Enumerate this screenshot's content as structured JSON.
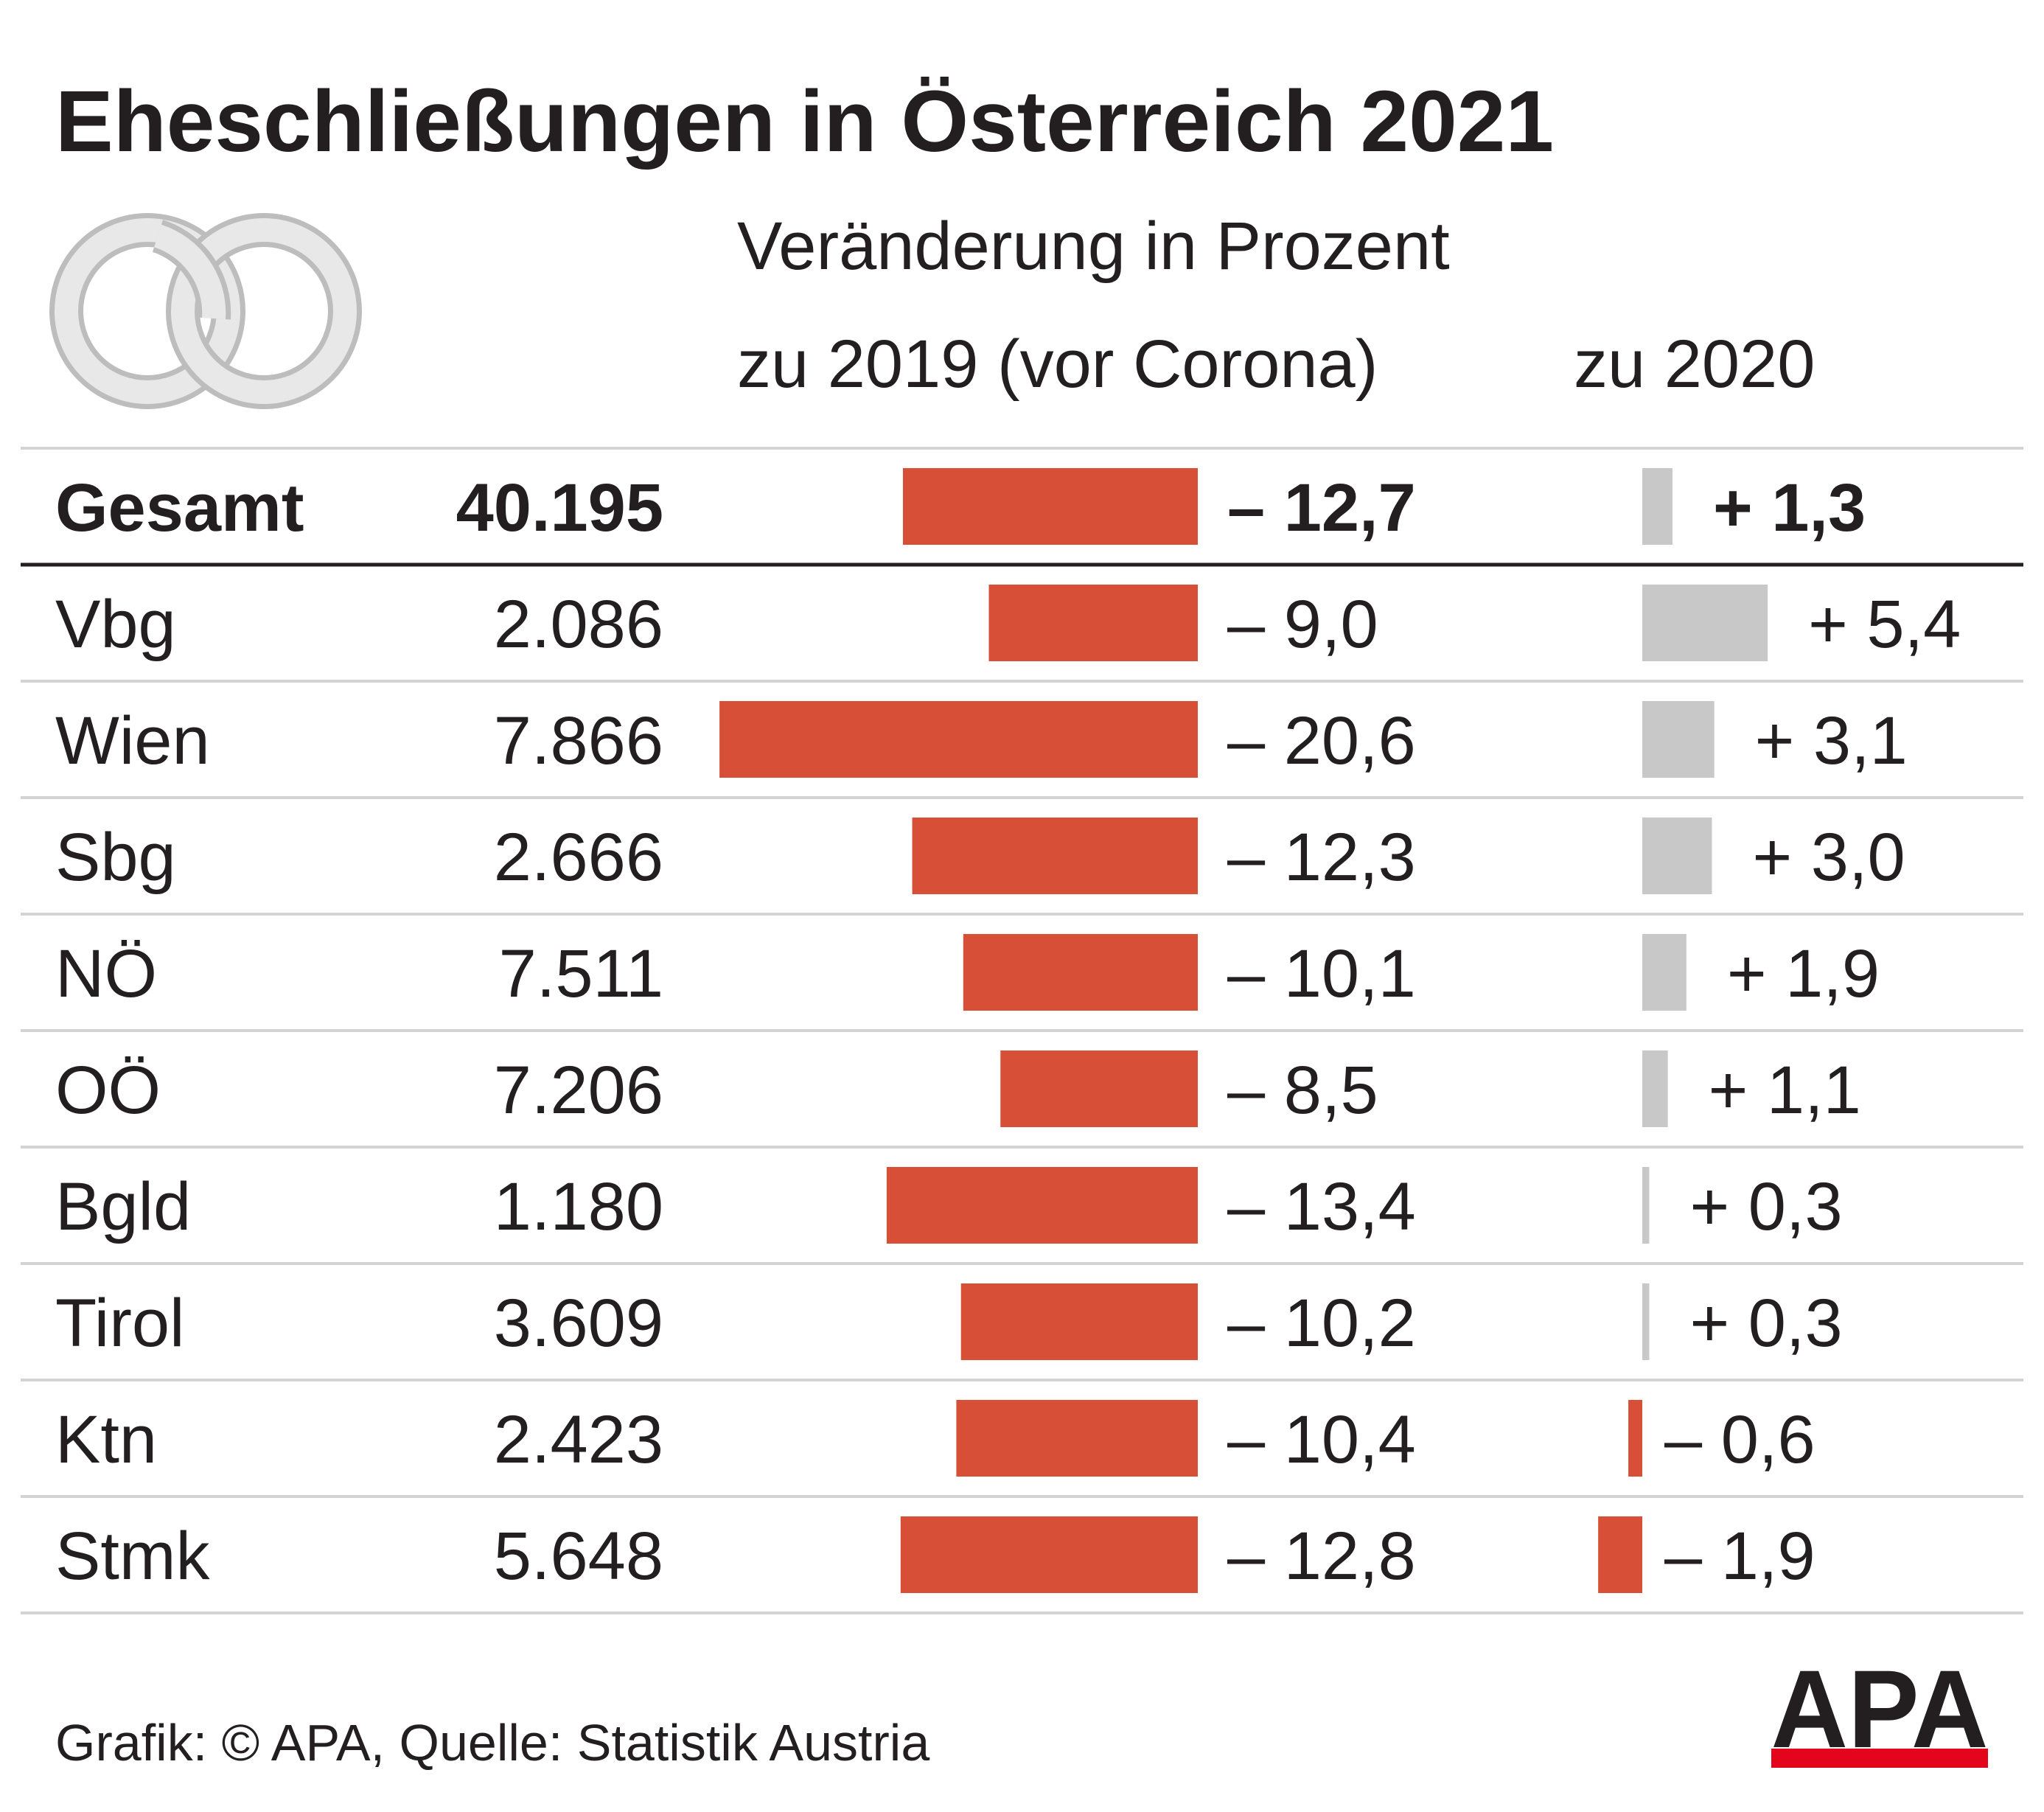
{
  "title": "Eheschließungen in Österreich 2021",
  "subtitle": "Veränderung in Prozent",
  "column_headers": {
    "vs_2019": "zu 2019 (vor Corona)",
    "vs_2020": "zu 2020"
  },
  "footer": {
    "source": "Grafik: © APA, Quelle: Statistik Austria",
    "logo_text": "APA"
  },
  "icon": "wedding-rings-icon",
  "colors": {
    "negative": "#d84f38",
    "positive": "#c8c8c8",
    "text": "#231f20",
    "divider": "#d3d3d3",
    "logo_bar": "#e3051b"
  },
  "chart_data": {
    "type": "table",
    "title": "Eheschließungen in Österreich 2021",
    "subtitle": "Veränderung in Prozent",
    "columns": [
      "",
      "",
      "zu 2019 (vor Corona)",
      "zu 2020"
    ],
    "rows": [
      {
        "region": "Gesamt",
        "count": "40.195",
        "change_2019": -12.7,
        "change_2019_label": "– 12,7",
        "change_2020": 1.3,
        "change_2020_label": "+ 1,3",
        "bold": true
      },
      {
        "region": "Vbg",
        "count": "2.086",
        "change_2019": -9.0,
        "change_2019_label": "– 9,0",
        "change_2020": 5.4,
        "change_2020_label": "+ 5,4"
      },
      {
        "region": "Wien",
        "count": "7.866",
        "change_2019": -20.6,
        "change_2019_label": "– 20,6",
        "change_2020": 3.1,
        "change_2020_label": "+ 3,1"
      },
      {
        "region": "Sbg",
        "count": "2.666",
        "change_2019": -12.3,
        "change_2019_label": "– 12,3",
        "change_2020": 3.0,
        "change_2020_label": "+ 3,0"
      },
      {
        "region": "NÖ",
        "count": "7.511",
        "change_2019": -10.1,
        "change_2019_label": "– 10,1",
        "change_2020": 1.9,
        "change_2020_label": "+ 1,9"
      },
      {
        "region": "OÖ",
        "count": "7.206",
        "change_2019": -8.5,
        "change_2019_label": "– 8,5",
        "change_2020": 1.1,
        "change_2020_label": "+ 1,1"
      },
      {
        "region": "Bgld",
        "count": "1.180",
        "change_2019": -13.4,
        "change_2019_label": "– 13,4",
        "change_2020": 0.3,
        "change_2020_label": "+ 0,3"
      },
      {
        "region": "Tirol",
        "count": "3.609",
        "change_2019": -10.2,
        "change_2019_label": "– 10,2",
        "change_2020": 0.3,
        "change_2020_label": "+ 0,3"
      },
      {
        "region": "Ktn",
        "count": "2.423",
        "change_2019": -10.4,
        "change_2019_label": "– 10,4",
        "change_2020": -0.6,
        "change_2020_label": "– 0,6"
      },
      {
        "region": "Stmk",
        "count": "5.648",
        "change_2019": -12.8,
        "change_2019_label": "– 12,8",
        "change_2020": -1.9,
        "change_2020_label": "– 1,9"
      }
    ]
  }
}
